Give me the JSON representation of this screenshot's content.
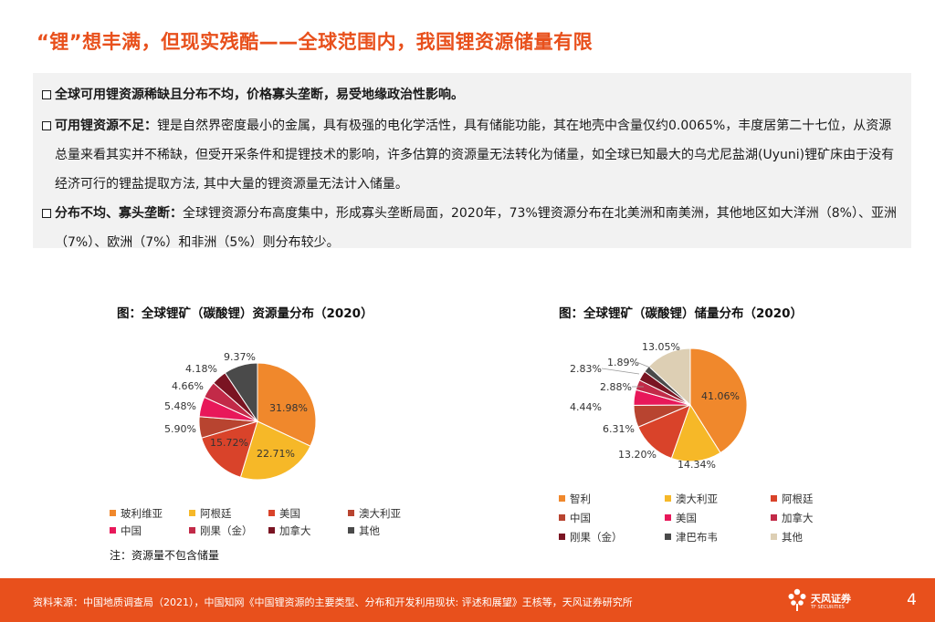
{
  "title": "“锂”想丰满，但现实残酷——全球范围内，我国锂资源储量有限",
  "bullets": [
    {
      "bold": "全球可用锂资源稀缺且分布不均，价格寡头垄断，易受地缘政治性影响。",
      "text": ""
    },
    {
      "bold": "可用锂资源不足：",
      "text": "锂是自然界密度最小的金属，具有极强的电化学活性，具有储能功能，其在地壳中含量仅约0.0065%，丰度居第二十七位，从资源总量来看其实并不稀缺，但受开采条件和提锂技术的影响，许多估算的资源量无法转化为储量，如全球已知最大的乌尤尼盐湖(Uyuni)锂矿床由于没有经济可行的锂盐提取方法, 其中大量的锂资源量无法计入储量。"
    },
    {
      "bold": "分布不均、寡头垄断：",
      "text": "全球锂资源分布高度集中，形成寡头垄断局面，2020年，73%锂资源分布在北美洲和南美洲，其他地区如大洋洲（8%）、亚洲（7%）、欧洲（7%）和非洲（5%）则分布较少。"
    }
  ],
  "charts": [
    {
      "title": "图：全球锂矿（碳酸锂）资源量分布（2020）",
      "chart_data": {
        "type": "pie",
        "title": "图：全球锂矿（碳酸锂）资源量分布（2020）",
        "categories": [
          "玻利维亚",
          "阿根廷",
          "美国",
          "澳大利亚",
          "中国",
          "刚果（金）",
          "加拿大",
          "其他"
        ],
        "values": [
          31.98,
          22.71,
          15.72,
          5.9,
          5.48,
          4.66,
          4.18,
          9.37
        ],
        "labels": [
          "31.98%",
          "22.71%",
          "15.72%",
          "5.90%",
          "5.48%",
          "4.66%",
          "4.18%",
          "9.37%"
        ],
        "colors": [
          "#f0882c",
          "#f6b828",
          "#d9432a",
          "#b84430",
          "#e8185a",
          "#c22a48",
          "#7a1422",
          "#4a4a4a"
        ],
        "legend_position": "bottom"
      }
    },
    {
      "title": "图：全球锂矿（碳酸锂）储量分布（2020）",
      "chart_data": {
        "type": "pie",
        "title": "图：全球锂矿（碳酸锂）储量分布（2020）",
        "categories": [
          "智利",
          "澳大利亚",
          "阿根廷",
          "中国",
          "美国",
          "加拿大",
          "刚果（金）",
          "津巴布韦",
          "其他"
        ],
        "values": [
          41.06,
          14.34,
          13.2,
          6.31,
          4.44,
          2.88,
          2.83,
          1.89,
          13.05
        ],
        "labels": [
          "41.06%",
          "14.34%",
          "13.20%",
          "6.31%",
          "4.44%",
          "2.88%",
          "2.83%",
          "1.89%",
          "13.05%"
        ],
        "colors": [
          "#f0882c",
          "#f6b828",
          "#d9432a",
          "#b84430",
          "#e8185a",
          "#c22a48",
          "#7a1422",
          "#4a4a4a",
          "#ddcfb4"
        ],
        "legend_position": "bottom"
      }
    }
  ],
  "note": "注：资源量不包含储量",
  "footer": {
    "source": "资料来源：中国地质调查局（2021），中国知网《中国锂资源的主要类型、分布和开发利用现状: 评述和展望》王核等，天风证券研究所",
    "logo_cn": "天风证券",
    "logo_en": "TF SECURITIES",
    "page": "4"
  }
}
